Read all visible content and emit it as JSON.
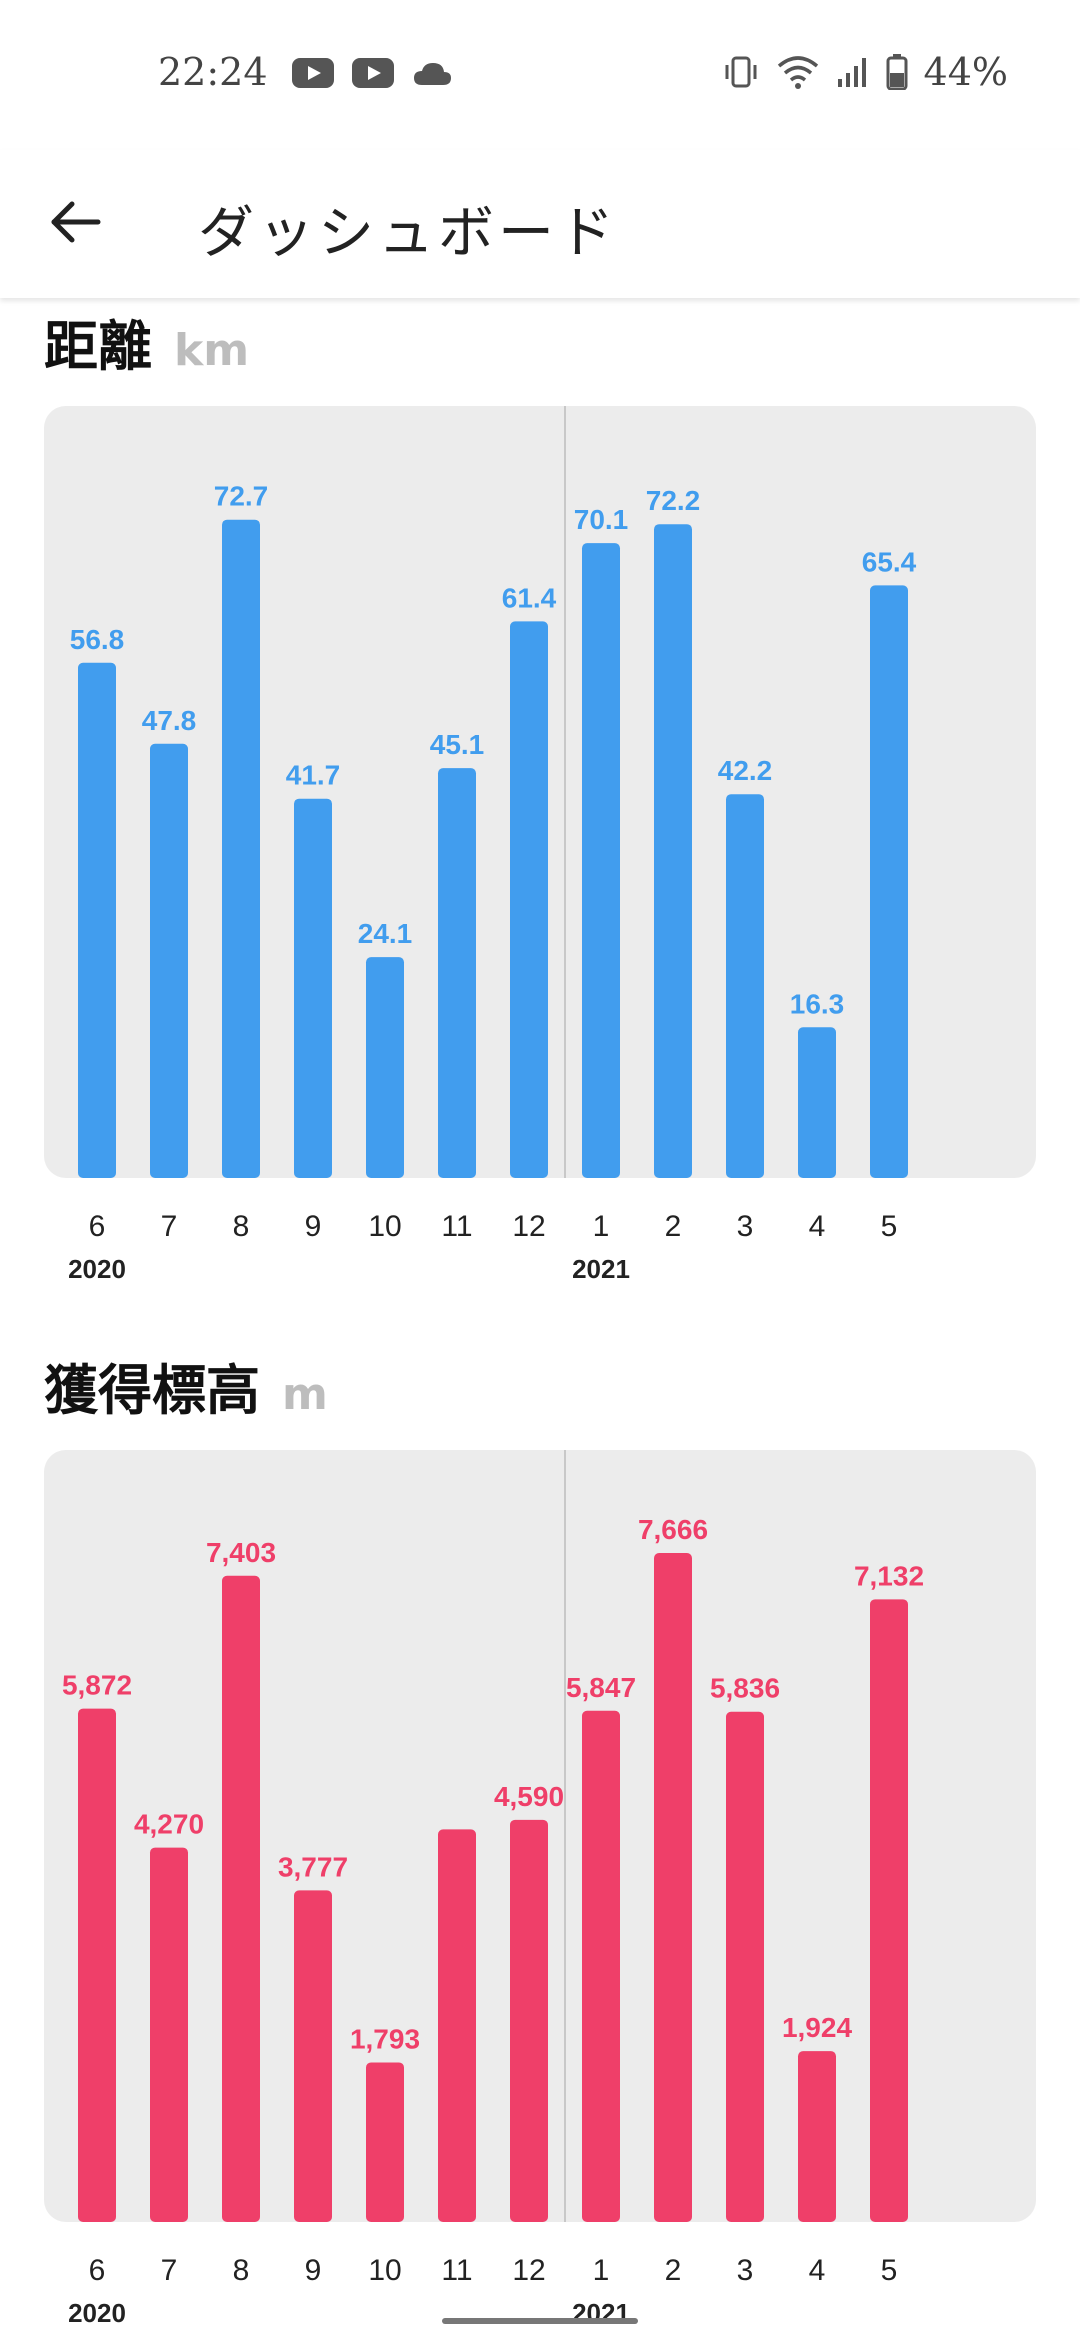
{
  "status_bar": {
    "time": "22:24",
    "left_icons": [
      "youtube-icon",
      "youtube-icon",
      "cloud-icon"
    ],
    "right_icons": [
      "vibrate-icon",
      "wifi-icon",
      "signal-icon",
      "battery-icon"
    ],
    "battery_percent": "44%"
  },
  "app_bar": {
    "back_icon": "arrow-left-icon",
    "title": "ダッシュボード"
  },
  "sections": [
    {
      "title": "距離",
      "unit": "km"
    },
    {
      "title": "獲得標高",
      "unit": "m"
    }
  ],
  "chart_data": [
    {
      "type": "bar",
      "title": "距離",
      "ylabel": "km",
      "color": "#419dee",
      "categories": [
        "6",
        "7",
        "8",
        "9",
        "10",
        "11",
        "12",
        "1",
        "2",
        "3",
        "4",
        "5"
      ],
      "year_labels": [
        {
          "index": 0,
          "label": "2020"
        },
        {
          "index": 7,
          "label": "2021"
        }
      ],
      "values": [
        56.8,
        47.8,
        72.7,
        41.7,
        24.1,
        45.1,
        61.4,
        70.1,
        72.2,
        42.2,
        16.3,
        65.4
      ],
      "value_labels": [
        "56.8",
        "47.8",
        "72.7",
        "41.7",
        "24.1",
        "45.1",
        "61.4",
        "70.1",
        "72.2",
        "42.2",
        "16.3",
        "65.4"
      ],
      "ylim": [
        0,
        80
      ],
      "grid": false,
      "year_divider_after_index": 6
    },
    {
      "type": "bar",
      "title": "獲得標高",
      "ylabel": "m",
      "color": "#ef3f69",
      "categories": [
        "6",
        "7",
        "8",
        "9",
        "10",
        "11",
        "12",
        "1",
        "2",
        "3",
        "4",
        "5"
      ],
      "year_labels": [
        {
          "index": 0,
          "label": "2020"
        },
        {
          "index": 7,
          "label": "2021"
        }
      ],
      "values": [
        5872,
        4270,
        7403,
        3777,
        1793,
        4480,
        4590,
        5847,
        7666,
        5836,
        1924,
        7132
      ],
      "value_labels": [
        "5,872",
        "4,270",
        "7,403",
        "3,777",
        "1,793",
        "",
        "4,590",
        "5,847",
        "7,666",
        "5,836",
        "1,924",
        "7,132"
      ],
      "ylim": [
        0,
        8300
      ],
      "grid": false,
      "year_divider_after_index": 6
    }
  ]
}
